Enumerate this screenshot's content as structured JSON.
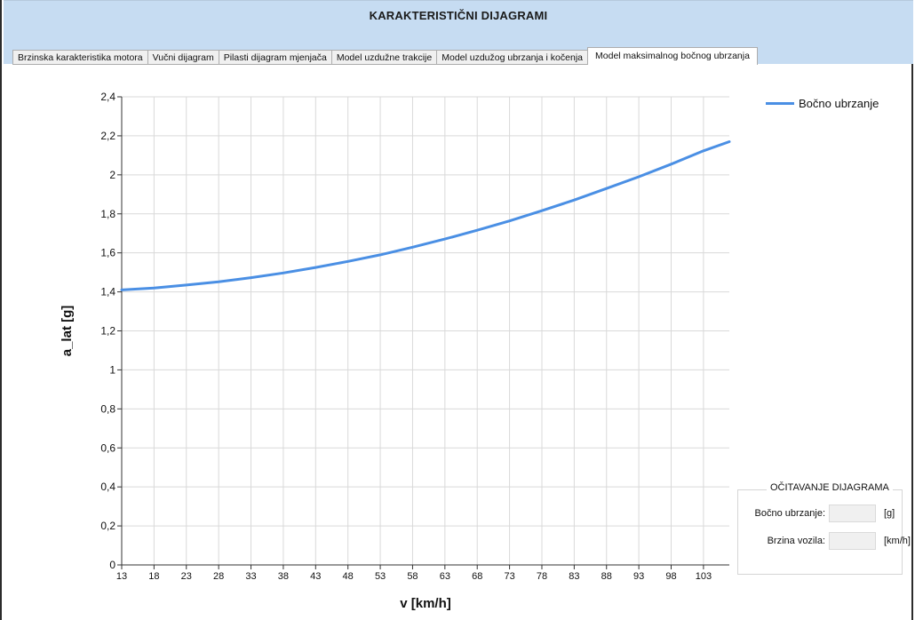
{
  "window": {
    "title": "KARAKTERISTIČNI DIJAGRAMI"
  },
  "tabs": [
    {
      "label": "Brzinska karakteristika motora",
      "active": false
    },
    {
      "label": "Vučni dijagram",
      "active": false
    },
    {
      "label": "Pilasti dijagram mjenjača",
      "active": false
    },
    {
      "label": "Model uzdužne trakcije",
      "active": false
    },
    {
      "label": "Model uzdužog ubrzanja i kočenja",
      "active": false
    },
    {
      "label": "Model maksimalnog bočnog ubrzanja",
      "active": true
    }
  ],
  "chart_data": {
    "type": "line",
    "title": "",
    "xlabel": "v [km/h]",
    "ylabel": "a_lat [g]",
    "xlim": [
      13,
      107
    ],
    "ylim": [
      0,
      2.4
    ],
    "xticks": [
      13,
      18,
      23,
      28,
      33,
      38,
      43,
      48,
      53,
      58,
      63,
      68,
      73,
      78,
      83,
      88,
      93,
      98,
      103
    ],
    "yticks": [
      "0",
      "0,2",
      "0,4",
      "0,6",
      "0,8",
      "1",
      "1,2",
      "1,4",
      "1,6",
      "1,8",
      "2",
      "2,2",
      "2,4"
    ],
    "grid": true,
    "legend_position": "top-right",
    "series": [
      {
        "name": "Bočno ubrzanje",
        "color": "#4a8fe4",
        "x": [
          13,
          18,
          23,
          28,
          33,
          38,
          43,
          48,
          53,
          58,
          63,
          68,
          73,
          78,
          83,
          88,
          93,
          98,
          103,
          107
        ],
        "y": [
          1.41,
          1.42,
          1.435,
          1.452,
          1.473,
          1.497,
          1.525,
          1.556,
          1.59,
          1.629,
          1.671,
          1.716,
          1.764,
          1.816,
          1.871,
          1.93,
          1.99,
          2.055,
          2.123,
          2.17
        ]
      }
    ]
  },
  "reading_panel": {
    "title": "OČITAVANJE DIJAGRAMA",
    "rows": [
      {
        "label": "Bočno ubrzanje:",
        "value": "",
        "unit": "[g]"
      },
      {
        "label": "Brzina vozila:",
        "value": "",
        "unit": "[km/h]"
      }
    ]
  }
}
